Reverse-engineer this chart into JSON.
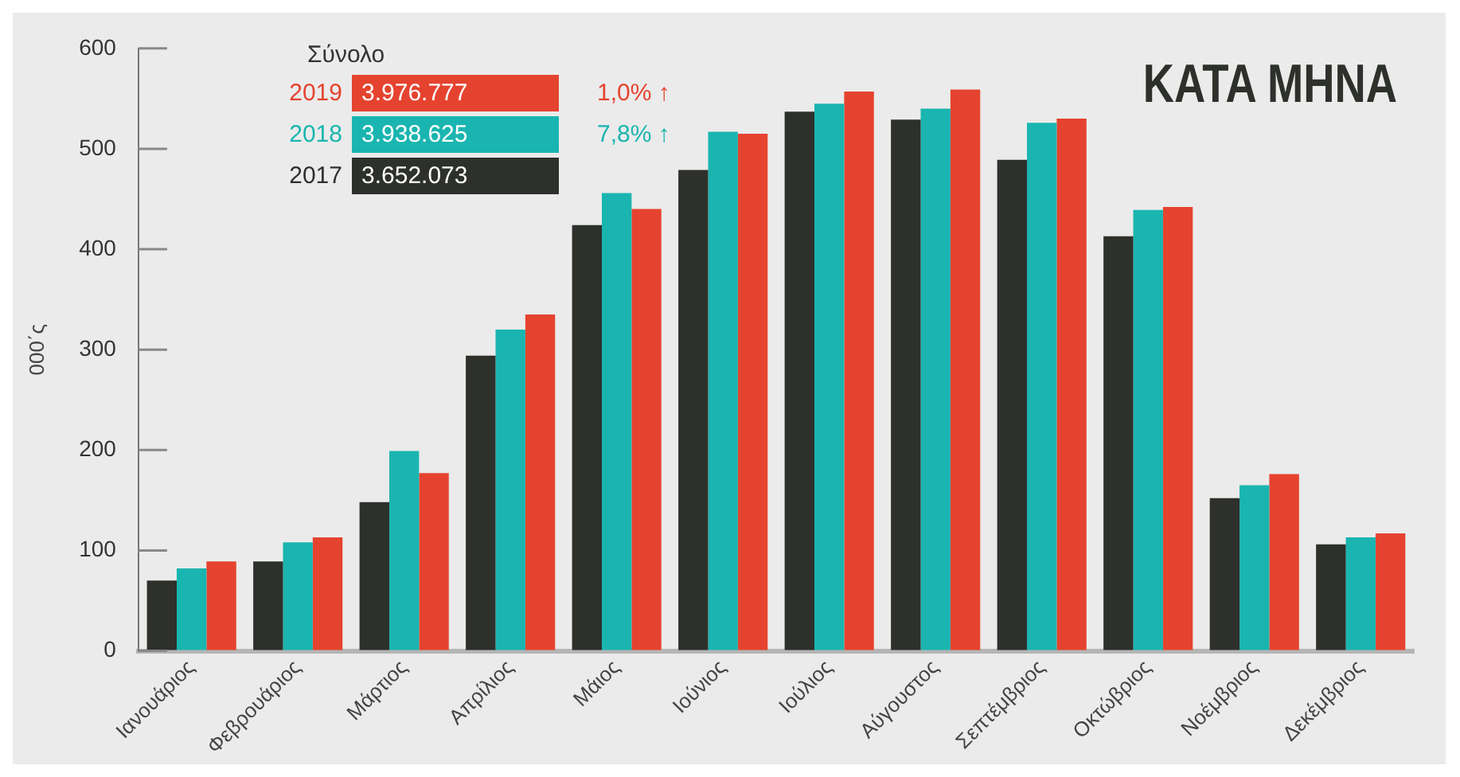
{
  "chart_data": {
    "type": "bar",
    "title": "KATA MHNA",
    "ylabel": "000΄ς",
    "legend_title": "Σύνολο",
    "categories": [
      "Ιανουάριος",
      "Φεβρουάριος",
      "Μάρτιος",
      "Απρίλιος",
      "Μάιος",
      "Ιούνιος",
      "Ιούλιος",
      "Αύγουστος",
      "Σεπτέμβριος",
      "Οκτώβριος",
      "Νοέμβριος",
      "Δεκέμβριος"
    ],
    "series": [
      {
        "name": "2017",
        "color": "#2d302b",
        "values": [
          70,
          89,
          148,
          294,
          424,
          479,
          537,
          529,
          489,
          413,
          152,
          106
        ]
      },
      {
        "name": "2018",
        "color": "#1ab5b0",
        "values": [
          82,
          108,
          199,
          320,
          456,
          517,
          545,
          540,
          526,
          439,
          165,
          113
        ]
      },
      {
        "name": "2019",
        "color": "#e5432f",
        "values": [
          89,
          113,
          177,
          335,
          440,
          515,
          557,
          559,
          530,
          442,
          176,
          117
        ]
      }
    ],
    "annotations": [
      "3.976.777",
      "1,0% ↑",
      "3.938.625",
      "7,8% ↑",
      "3.652.073"
    ],
    "ylim": [
      0,
      600
    ],
    "yticks": [
      0,
      100,
      200,
      300,
      400,
      500,
      600
    ],
    "grid": false,
    "legend": "top left"
  }
}
